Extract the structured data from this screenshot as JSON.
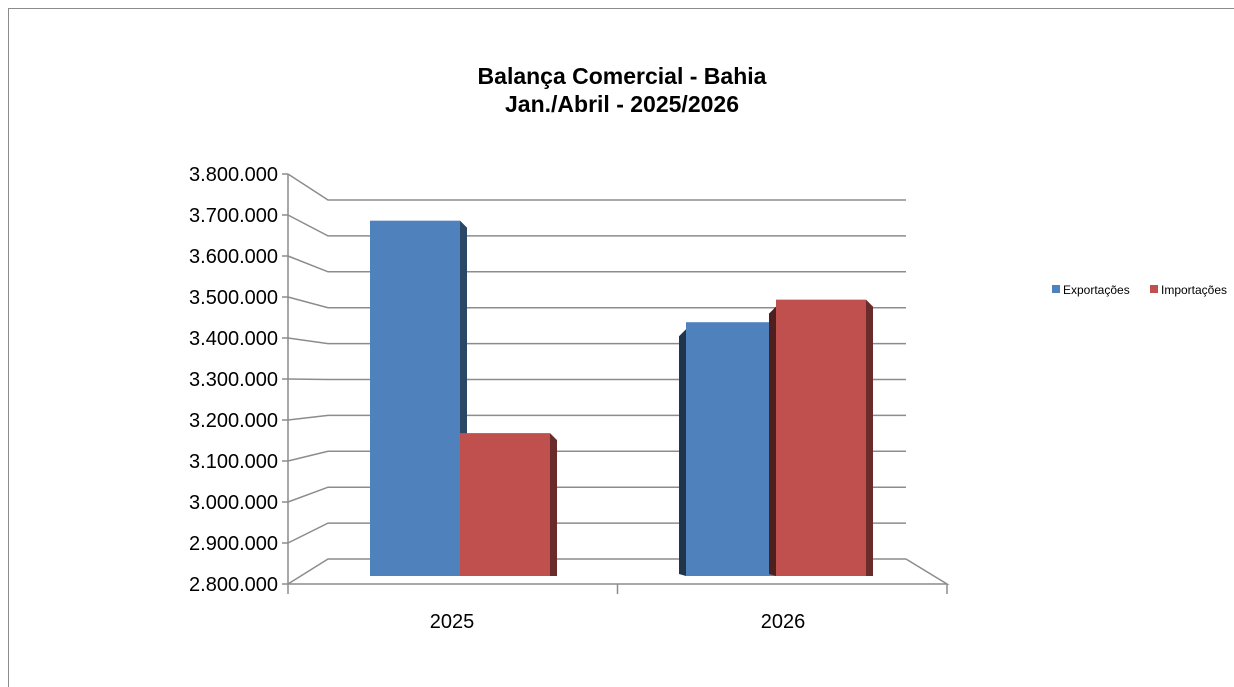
{
  "chart_data": {
    "type": "bar",
    "title": "Balança Comercial - Bahia",
    "subtitle": "Jan./Abril - 2025/2026",
    "categories": [
      "2025",
      "2026"
    ],
    "series": [
      {
        "name": "Exportações",
        "values": [
          3745000,
          3475000
        ],
        "color": "#4f81bd"
      },
      {
        "name": "Importações",
        "values": [
          3180000,
          3535000
        ],
        "color": "#c0504d"
      }
    ],
    "ylim": [
      2800000,
      3800000
    ],
    "ytick_step": 100000,
    "ytick_labels": [
      "2.800.000",
      "2.900.000",
      "3.000.000",
      "3.100.000",
      "3.200.000",
      "3.300.000",
      "3.400.000",
      "3.500.000",
      "3.600.000",
      "3.700.000",
      "3.800.000"
    ],
    "grid": true,
    "legend_position": "right"
  }
}
